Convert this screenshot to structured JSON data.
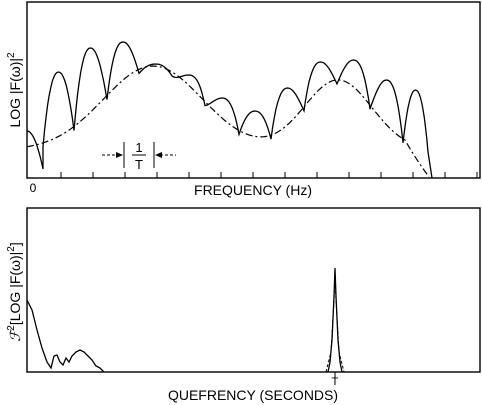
{
  "top_panel": {
    "ylabel_main": "LOG |F(ω)|",
    "ylabel_sup": "2",
    "xlabel": "FREQUENCY (Hz)",
    "origin_label": "0",
    "period_numerator": "1",
    "period_denominator": "T"
  },
  "bottom_panel": {
    "ylabel_pre": "ℱ",
    "ylabel_sup1": "2",
    "ylabel_mid": "[LOG |F(ω)|",
    "ylabel_sup2": "2",
    "ylabel_post": "]",
    "xlabel": "QUEFRENCY (SECONDS)",
    "peak_label": "T"
  },
  "colors": {
    "line": "#000000",
    "background": "#ffffff"
  },
  "line_styles": {
    "spectrum": "solid",
    "envelope": "dashed"
  }
}
